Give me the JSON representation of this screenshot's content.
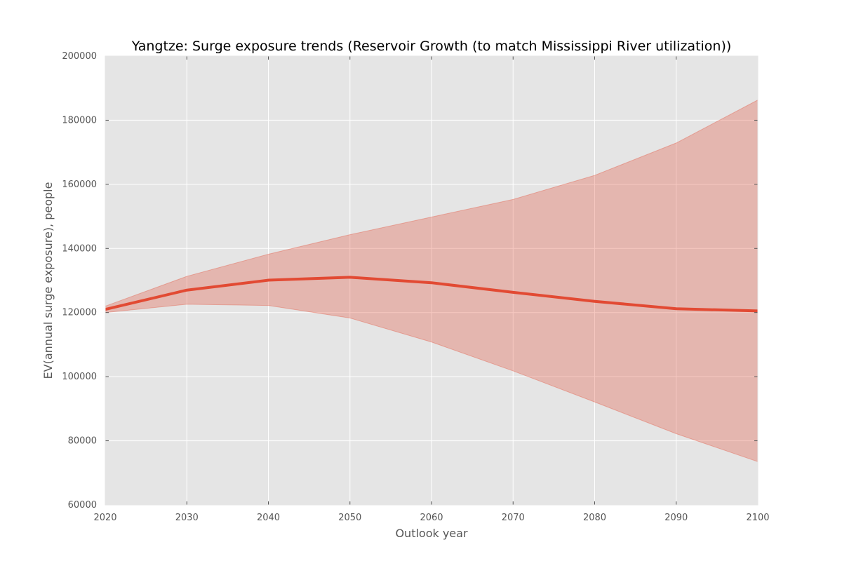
{
  "chart_data": {
    "type": "line",
    "title": "Yangtze: Surge exposure trends (Reservoir Growth (to match Mississippi River utilization))",
    "xlabel": "Outlook year",
    "ylabel": "EV(annual surge exposure), people",
    "x": [
      2020,
      2030,
      2040,
      2050,
      2060,
      2070,
      2080,
      2090,
      2100
    ],
    "series": [
      {
        "values": [
          121000,
          127000,
          130100,
          131000,
          129300,
          126300,
          123500,
          121200,
          120500
        ],
        "band_upper": [
          122000,
          131300,
          138200,
          144300,
          149800,
          155300,
          162800,
          172900,
          186300
        ],
        "band_lower": [
          120000,
          122600,
          122200,
          118300,
          110800,
          101800,
          92100,
          82200,
          73500
        ]
      }
    ],
    "xlim": [
      2020,
      2100
    ],
    "ylim": [
      60000,
      200000
    ],
    "x_ticks": [
      "2020",
      "2030",
      "2040",
      "2050",
      "2060",
      "2070",
      "2080",
      "2090",
      "2100"
    ],
    "y_ticks": [
      "60000",
      "80000",
      "100000",
      "120000",
      "140000",
      "160000",
      "180000",
      "200000"
    ],
    "grid": true,
    "colors": {
      "plot_background": "#e5e5e5",
      "grid": "#ffffff",
      "line": "#e24a33",
      "band": "#e24a33"
    }
  }
}
